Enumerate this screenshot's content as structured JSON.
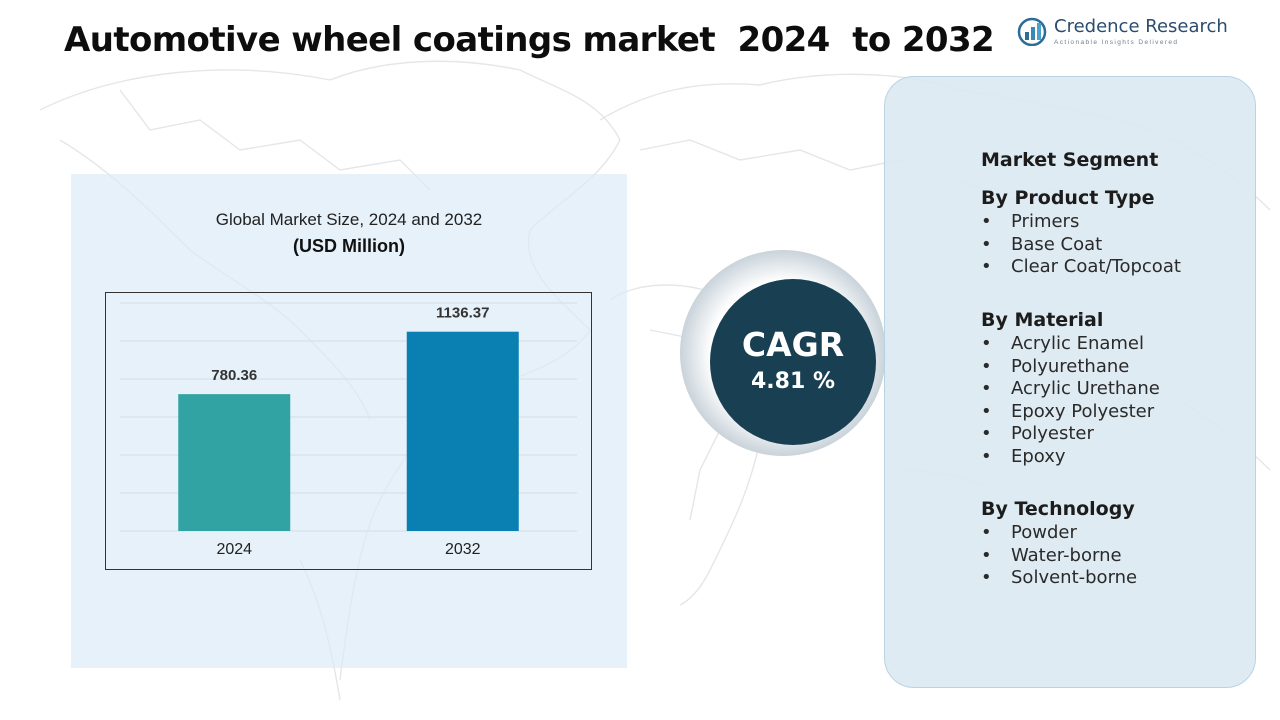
{
  "title": "Automotive wheel coatings market  2024  to 2032",
  "logo": {
    "name": "Credence Research",
    "tagline": "Actionable Insights Delivered",
    "icon": "bar-chart-logo-icon"
  },
  "chart_data": {
    "type": "bar",
    "title": "Global Market Size, 2024 and 2032",
    "unit_label": "(USD Million)",
    "categories": [
      "2024",
      "2032"
    ],
    "values": [
      780.36,
      1136.37
    ],
    "value_labels": [
      "780.36",
      "1136.37"
    ],
    "colors": [
      "#32a3a3",
      "#0a7fb2"
    ],
    "ylim": [
      0,
      1300
    ],
    "grid": true,
    "legend": "none"
  },
  "cagr": {
    "label": "CAGR",
    "value": "4.81 %"
  },
  "segments": {
    "heading": "Market Segment",
    "groups": [
      {
        "title": "By Product Type",
        "items": [
          "Primers",
          "Base Coat",
          "Clear Coat/Topcoat"
        ]
      },
      {
        "title": "By Material",
        "items": [
          "Acrylic Enamel",
          "Polyurethane",
          "Acrylic Urethane",
          "Epoxy Polyester",
          "Polyester",
          "Epoxy"
        ]
      },
      {
        "title": "By Technology",
        "items": [
          "Powder",
          "Water-borne",
          "Solvent-borne"
        ]
      }
    ],
    "bullet": "•"
  },
  "colors": {
    "cagr_circle": "#183f52",
    "panel_bg": "#dde9f2",
    "logo_text": "#2b4c6f"
  }
}
